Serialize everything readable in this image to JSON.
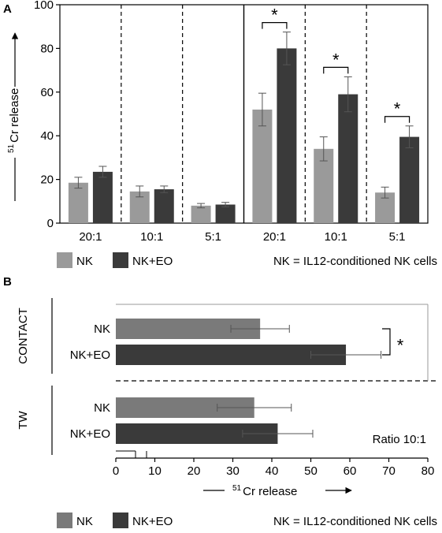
{
  "colors": {
    "nk": "#9a9a9a",
    "nk_eo": "#3a3a3a",
    "nk_b": "#7a7a7a",
    "axis": "#000000",
    "error": "#555555"
  },
  "chart_data": [
    {
      "panel_label": "A",
      "type": "bar",
      "ylabel_sup": "51",
      "ylabel_text": "Cr release",
      "ylim": [
        0,
        100
      ],
      "yticks": [
        0,
        20,
        40,
        60,
        80,
        100
      ],
      "categories": [
        "20:1",
        "10:1",
        "5:1",
        "20:1",
        "10:1",
        "5:1"
      ],
      "series": [
        {
          "name": "NK",
          "values": [
            18.5,
            14.5,
            8,
            52,
            34,
            14
          ],
          "errors": [
            2.5,
            2.5,
            1,
            7.5,
            5.5,
            2.5
          ]
        },
        {
          "name": "NK+EO",
          "values": [
            23.5,
            15.5,
            8.5,
            80,
            59,
            39.5
          ],
          "errors": [
            2.5,
            1.5,
            1,
            7.5,
            8,
            5
          ]
        }
      ],
      "significance": [
        {
          "group": 3,
          "label": "*"
        },
        {
          "group": 4,
          "label": "*"
        },
        {
          "group": 5,
          "label": "*"
        }
      ],
      "legend": {
        "items": [
          "NK",
          "NK+EO"
        ],
        "note": "NK = IL12-conditioned NK cells"
      }
    },
    {
      "panel_label": "B",
      "type": "bar",
      "orientation": "horizontal",
      "xlabel_sup": "51",
      "xlabel_text": "Cr release",
      "xlim": [
        0,
        80
      ],
      "xticks": [
        0,
        10,
        20,
        30,
        40,
        50,
        60,
        70,
        80
      ],
      "groups": [
        {
          "label": "CONTACT",
          "bars": [
            {
              "label": "NK",
              "series": "NK",
              "value": 37,
              "error": 7.5
            },
            {
              "label": "NK+EO",
              "series": "NK+EO",
              "value": 59,
              "error": 9
            }
          ]
        },
        {
          "label": "TW",
          "bars": [
            {
              "label": "NK",
              "series": "NK",
              "value": 35.5,
              "error": 9.5
            },
            {
              "label": "NK+EO",
              "series": "NK+EO",
              "value": 41.5,
              "error": 9
            }
          ]
        }
      ],
      "significance": [
        {
          "group": 0,
          "label": "*"
        }
      ],
      "annotation": "Ratio 10:1",
      "legend": {
        "items": [
          "NK",
          "NK+EO"
        ],
        "note": "NK = IL12-conditioned NK cells"
      }
    }
  ]
}
